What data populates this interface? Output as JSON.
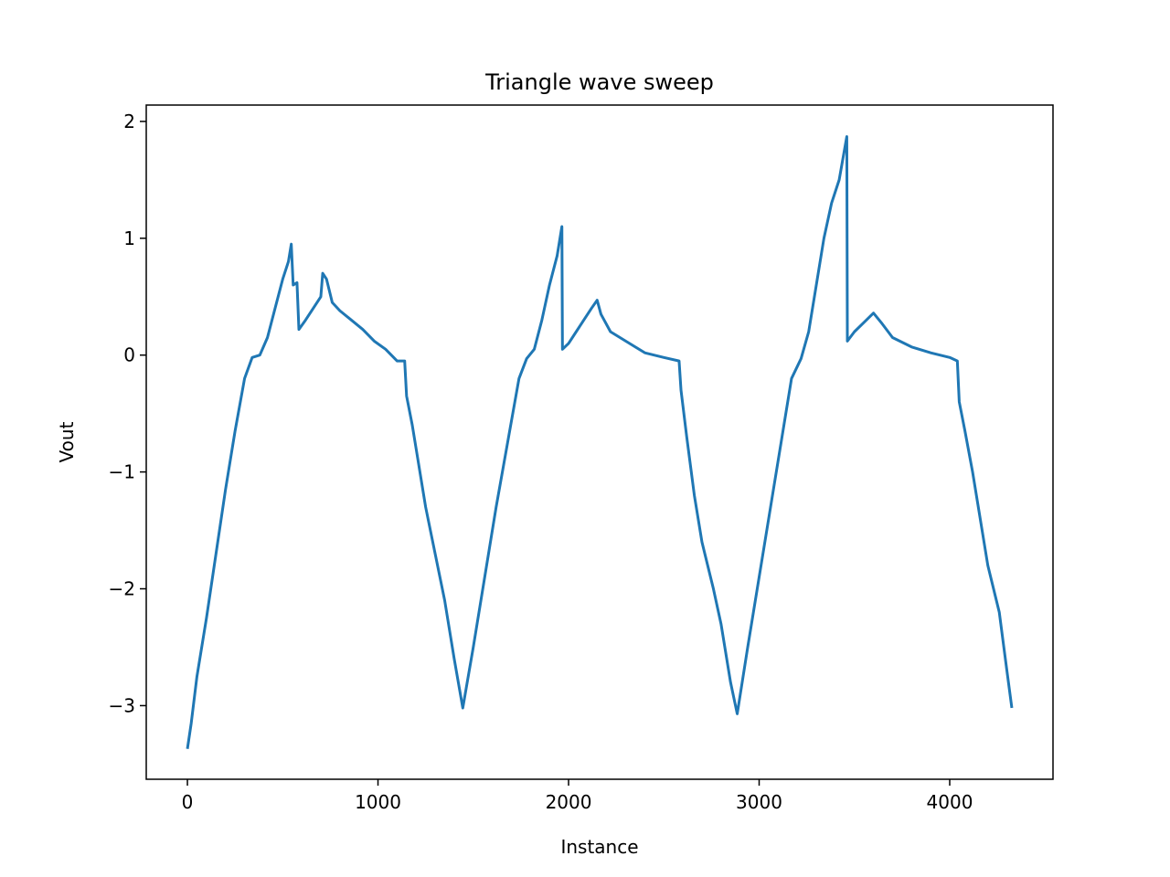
{
  "chart_data": {
    "type": "line",
    "title": "Triangle wave sweep",
    "xlabel": "Instance",
    "ylabel": "Vout",
    "x": [
      0,
      20,
      50,
      100,
      150,
      200,
      250,
      300,
      340,
      380,
      420,
      460,
      500,
      530,
      545,
      555,
      575,
      585,
      620,
      660,
      700,
      710,
      730,
      760,
      800,
      860,
      920,
      980,
      1040,
      1100,
      1140,
      1150,
      1180,
      1210,
      1250,
      1300,
      1350,
      1400,
      1445,
      1500,
      1560,
      1620,
      1680,
      1740,
      1780,
      1820,
      1860,
      1900,
      1940,
      1965,
      1968,
      2000,
      2040,
      2080,
      2120,
      2150,
      2170,
      2220,
      2300,
      2400,
      2500,
      2580,
      2590,
      2620,
      2660,
      2700,
      2760,
      2800,
      2850,
      2885,
      2940,
      3000,
      3060,
      3120,
      3170,
      3220,
      3260,
      3300,
      3340,
      3380,
      3420,
      3460,
      3463,
      3500,
      3550,
      3600,
      3640,
      3700,
      3800,
      3900,
      4000,
      4040,
      4050,
      4080,
      4120,
      4160,
      4200,
      4260,
      4300,
      4326
    ],
    "series": [
      {
        "name": "Vout",
        "color": "#1f77b4",
        "values": [
          -3.37,
          -3.15,
          -2.75,
          -2.25,
          -1.7,
          -1.15,
          -0.65,
          -0.2,
          -0.02,
          0.0,
          0.15,
          0.4,
          0.65,
          0.8,
          0.95,
          0.6,
          0.62,
          0.22,
          0.3,
          0.4,
          0.5,
          0.7,
          0.65,
          0.45,
          0.38,
          0.3,
          0.22,
          0.12,
          0.05,
          -0.05,
          -0.05,
          -0.35,
          -0.6,
          -0.9,
          -1.3,
          -1.7,
          -2.1,
          -2.6,
          -3.02,
          -2.5,
          -1.9,
          -1.3,
          -0.75,
          -0.2,
          -0.03,
          0.05,
          0.3,
          0.6,
          0.85,
          1.1,
          0.05,
          0.1,
          0.2,
          0.3,
          0.4,
          0.47,
          0.35,
          0.2,
          0.12,
          0.02,
          -0.02,
          -0.05,
          -0.3,
          -0.7,
          -1.2,
          -1.6,
          -2.0,
          -2.3,
          -2.8,
          -3.07,
          -2.5,
          -1.9,
          -1.3,
          -0.7,
          -0.2,
          -0.03,
          0.2,
          0.6,
          1.0,
          1.3,
          1.5,
          1.87,
          0.12,
          0.2,
          0.28,
          0.36,
          0.28,
          0.15,
          0.07,
          0.02,
          -0.02,
          -0.05,
          -0.4,
          -0.65,
          -1.0,
          -1.4,
          -1.8,
          -2.2,
          -2.7,
          -3.02
        ]
      }
    ],
    "xlim": [
      -216,
      4542
    ],
    "ylim": [
      -3.63,
      2.14
    ],
    "xticks": [
      0,
      1000,
      2000,
      3000,
      4000
    ],
    "yticks": [
      {
        "value": -3,
        "label": "−3"
      },
      {
        "value": -2,
        "label": "−2"
      },
      {
        "value": -1,
        "label": "−1"
      },
      0,
      1,
      2
    ]
  }
}
